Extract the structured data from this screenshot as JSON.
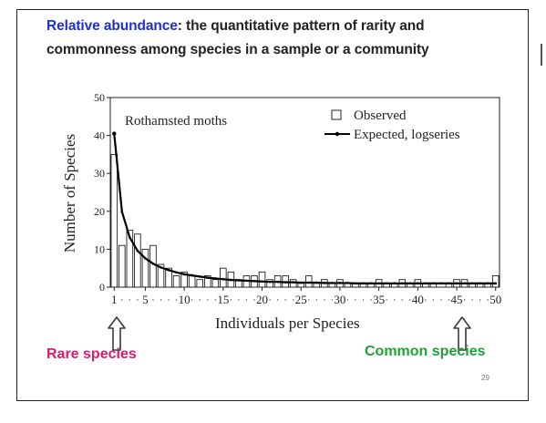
{
  "slide": {
    "heading_term": "Relative abundance",
    "heading_rest": ": the quantitative pattern of rarity and",
    "heading_line2": "commonness among species in a sample or a community",
    "rare_label": "Rare species",
    "common_label": "Common species",
    "page_number": "29",
    "colors": {
      "term": "#1f2fd0",
      "rare": "#e0186f",
      "common": "#21a03a"
    },
    "icons": [
      "up-arrow-outline-icon",
      "up-arrow-outline-icon"
    ]
  },
  "chart_data": {
    "type": "bar",
    "title": "Rothamsted moths",
    "xlabel": "Individuals per Species",
    "ylabel": "Number of Species",
    "xlim": [
      0.5,
      50.5
    ],
    "ylim": [
      0,
      50
    ],
    "x_ticks": [
      1,
      5,
      10,
      15,
      20,
      25,
      30,
      35,
      40,
      45,
      50
    ],
    "y_ticks": [
      0,
      10,
      20,
      30,
      40,
      50
    ],
    "grid": false,
    "legend_position": "top-right",
    "legend": [
      "Observed",
      "Expected, logseries"
    ],
    "series": [
      {
        "name": "Observed",
        "style": "open-bars",
        "x": [
          1,
          2,
          3,
          4,
          5,
          6,
          7,
          8,
          9,
          10,
          11,
          12,
          13,
          14,
          15,
          16,
          17,
          18,
          19,
          20,
          21,
          22,
          23,
          24,
          25,
          26,
          27,
          28,
          29,
          30,
          31,
          32,
          33,
          34,
          35,
          36,
          37,
          38,
          39,
          40,
          41,
          42,
          43,
          44,
          45,
          46,
          47,
          48,
          49,
          50
        ],
        "values": [
          35,
          11,
          15,
          14,
          10,
          11,
          6,
          5,
          3,
          4,
          3,
          2,
          3,
          2,
          5,
          4,
          2,
          3,
          3,
          4,
          2,
          3,
          3,
          2,
          1,
          3,
          1,
          2,
          1,
          2,
          1,
          1,
          1,
          1,
          2,
          1,
          1,
          2,
          1,
          2,
          1,
          1,
          0,
          1,
          2,
          2,
          1,
          1,
          1,
          3
        ]
      },
      {
        "name": "Expected, logseries",
        "style": "line-with-dots",
        "x": [
          1,
          2,
          3,
          4,
          5,
          6,
          7,
          8,
          9,
          10,
          11,
          12,
          13,
          14,
          15,
          16,
          17,
          18,
          19,
          20,
          21,
          22,
          23,
          24,
          25,
          26,
          27,
          28,
          29,
          30,
          31,
          32,
          33,
          34,
          35,
          36,
          37,
          38,
          39,
          40,
          41,
          42,
          43,
          44,
          45,
          46,
          47,
          48,
          49,
          50
        ],
        "values": [
          40.5,
          19.9,
          13.1,
          9.6,
          7.6,
          6.2,
          5.2,
          4.5,
          3.9,
          3.4,
          3.1,
          2.8,
          2.5,
          2.3,
          2.1,
          1.9,
          1.8,
          1.7,
          1.6,
          1.5,
          1.4,
          1.4,
          1.3,
          1.3,
          1.2,
          1.2,
          1.2,
          1.1,
          1.1,
          1.1,
          1.1,
          1.0,
          1.0,
          1.0,
          1.0,
          1.0,
          1.0,
          1.0,
          1.0,
          1.0,
          1.0,
          1.0,
          1.0,
          1.0,
          1.0,
          1.0,
          1.0,
          1.0,
          1.0,
          1.0
        ]
      }
    ]
  }
}
